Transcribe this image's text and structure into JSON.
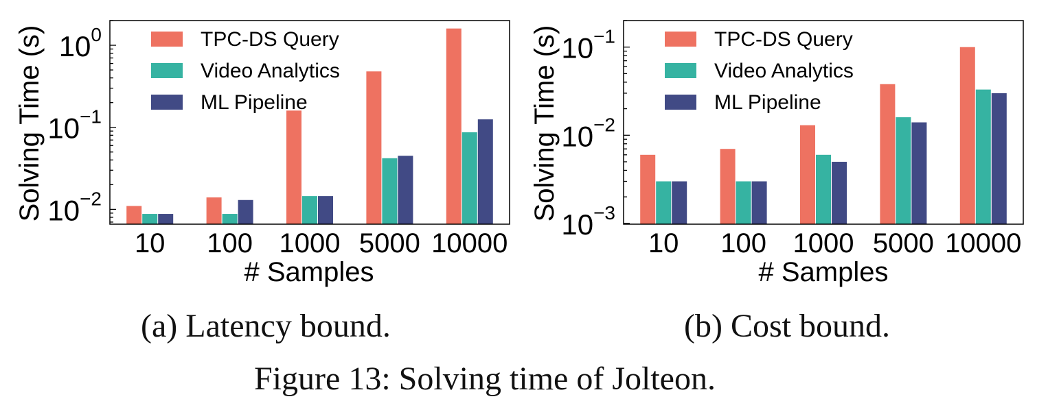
{
  "figure_caption": "Figure 13: Solving time of Jolteon.",
  "colors": {
    "TPC-DS Query": "#EE7261",
    "Video Analytics": "#36B3A2",
    "ML Pipeline": "#414A85"
  },
  "chart_data": [
    {
      "type": "bar",
      "caption": "(a) Latency bound.",
      "xlabel": "# Samples",
      "ylabel": "Solving Time (s)",
      "yscale": "log",
      "ylim": [
        0.0066,
        2.0
      ],
      "yticks": [
        {
          "value": 0.01,
          "base": "10",
          "exp": "−2"
        },
        {
          "value": 0.1,
          "base": "10",
          "exp": "−1"
        },
        {
          "value": 1,
          "base": "10",
          "exp": "0"
        }
      ],
      "categories": [
        "10",
        "100",
        "1000",
        "5000",
        "10000"
      ],
      "series": [
        {
          "name": "TPC-DS Query",
          "values": [
            0.011,
            0.014,
            0.16,
            0.48,
            1.6
          ]
        },
        {
          "name": "Video Analytics",
          "values": [
            0.0088,
            0.0088,
            0.0145,
            0.042,
            0.087
          ]
        },
        {
          "name": "ML Pipeline",
          "values": [
            0.0088,
            0.013,
            0.0145,
            0.045,
            0.125
          ]
        }
      ],
      "legend_position": "upper-left",
      "grid": false
    },
    {
      "type": "bar",
      "caption": "(b) Cost bound.",
      "xlabel": "# Samples",
      "ylabel": "Solving Time (s)",
      "yscale": "log",
      "ylim": [
        0.00098,
        0.2
      ],
      "yticks": [
        {
          "value": 0.001,
          "base": "10",
          "exp": "−3"
        },
        {
          "value": 0.01,
          "base": "10",
          "exp": "−2"
        },
        {
          "value": 0.1,
          "base": "10",
          "exp": "−1"
        }
      ],
      "categories": [
        "10",
        "100",
        "1000",
        "5000",
        "10000"
      ],
      "series": [
        {
          "name": "TPC-DS Query",
          "values": [
            0.006,
            0.007,
            0.013,
            0.038,
            0.1
          ]
        },
        {
          "name": "Video Analytics",
          "values": [
            0.003,
            0.003,
            0.006,
            0.016,
            0.033
          ]
        },
        {
          "name": "ML Pipeline",
          "values": [
            0.003,
            0.003,
            0.005,
            0.014,
            0.03
          ]
        }
      ],
      "legend_position": "upper-left",
      "grid": false
    }
  ]
}
